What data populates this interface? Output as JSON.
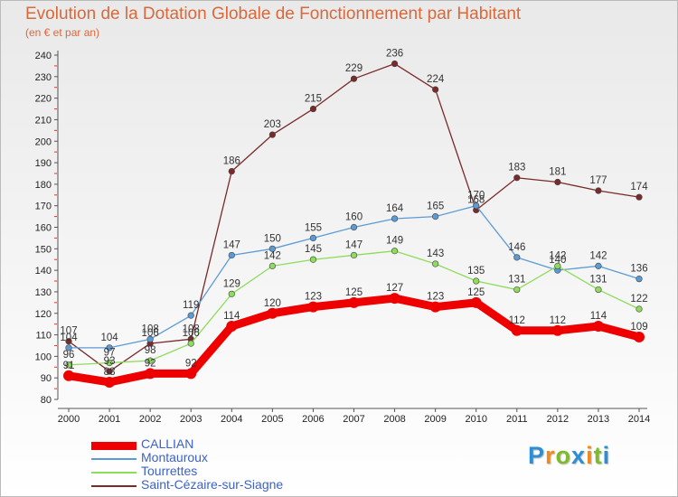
{
  "title": "Evolution de la Dotation Globale de Fonctionnement par Habitant",
  "subtitle": "(en € et par an)",
  "logo": {
    "letters": [
      {
        "ch": "P",
        "color": "#2b8fd8"
      },
      {
        "ch": "r",
        "color": "#f08a1c"
      },
      {
        "ch": "o",
        "color": "#7dbb2a"
      },
      {
        "ch": "x",
        "color": "#2b8fd8"
      },
      {
        "ch": "i",
        "color": "#f08a1c"
      },
      {
        "ch": "t",
        "color": "#7dbb2a"
      },
      {
        "ch": "i",
        "color": "#2b8fd8"
      }
    ]
  },
  "chart_data": {
    "type": "line",
    "title": "Evolution de la Dotation Globale de Fonctionnement par Habitant",
    "subtitle": "(en € et par an)",
    "x": [
      "2000",
      "2001",
      "2002",
      "2003",
      "2004",
      "2005",
      "2006",
      "2007",
      "2008",
      "2009",
      "2010",
      "2011",
      "2012",
      "2013",
      "2014"
    ],
    "ylim": [
      80,
      240
    ],
    "yticks": [
      80,
      90,
      100,
      110,
      120,
      130,
      140,
      150,
      160,
      170,
      180,
      190,
      200,
      210,
      220,
      230,
      240
    ],
    "grid": false,
    "legend_position": "bottom-left",
    "series": [
      {
        "name": "CALLIAN",
        "color": "#ee0000",
        "width": 9,
        "values": [
          91,
          88,
          92,
          92,
          114,
          120,
          123,
          125,
          127,
          123,
          125,
          112,
          112,
          114,
          109
        ]
      },
      {
        "name": "Montauroux",
        "color": "#5b9bd5",
        "width": 1.3,
        "values": [
          104,
          104,
          108,
          119,
          147,
          150,
          155,
          160,
          164,
          165,
          170,
          146,
          140,
          142,
          136
        ]
      },
      {
        "name": "Tourrettes",
        "color": "#8edc5c",
        "width": 1.3,
        "values": [
          96,
          97,
          98,
          106,
          129,
          142,
          145,
          147,
          149,
          143,
          135,
          131,
          142,
          131,
          122
        ]
      },
      {
        "name": "Saint-Cézaire-sur-Siagne",
        "color": "#7a2a2a",
        "width": 1.3,
        "values": [
          107,
          93,
          106,
          108,
          186,
          203,
          215,
          229,
          236,
          224,
          168,
          183,
          181,
          177,
          174
        ]
      }
    ]
  }
}
